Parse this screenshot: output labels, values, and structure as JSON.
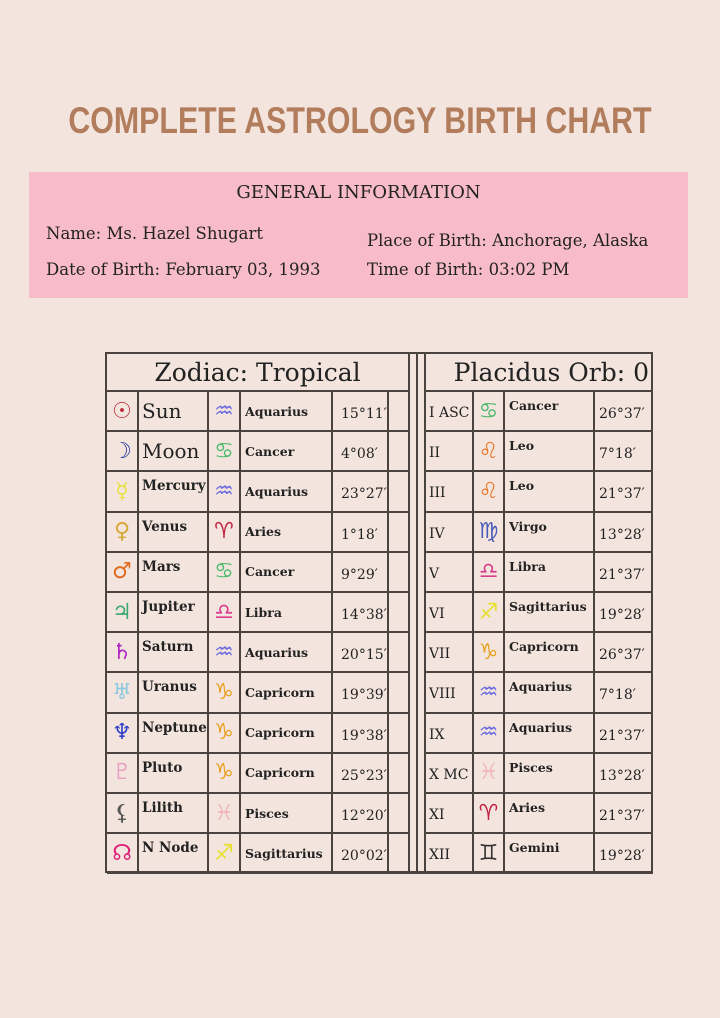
{
  "title": "COMPLETE ASTROLOGY BIRTH CHART",
  "general": {
    "heading": "GENERAL INFORMATION",
    "name": "Name: Ms. Hazel Shugart",
    "date_of_birth": "Date of Birth: February 03, 1993",
    "place_of_birth": "Place of Birth: Anchorage, Alaska",
    "time_of_birth": "Time of Birth: 03:02 PM"
  },
  "zodiac_header": "Zodiac: Tropical",
  "houses_header": "Placidus Orb: 0",
  "planets": [
    {
      "icon": "sun-icon",
      "glyph": "☉",
      "color": "#c0303a",
      "name": "Sun",
      "sign_icon": "aquarius-icon",
      "sign_glyph": "♒",
      "sign_color": "#6a6ae0",
      "sign": "Aquarius",
      "degree": "15°11′"
    },
    {
      "icon": "moon-icon",
      "glyph": "☽",
      "color": "#2a3aa0",
      "name": "Moon",
      "sign_icon": "cancer-icon",
      "sign_glyph": "♋",
      "sign_color": "#4cb86a",
      "sign": "Cancer",
      "degree": "4°08′"
    },
    {
      "icon": "mercury-icon",
      "glyph": "☿",
      "color": "#e8e040",
      "name": "Mercury",
      "sign_icon": "aquarius-icon",
      "sign_glyph": "♒",
      "sign_color": "#6a6ae0",
      "sign": "Aquarius",
      "degree": "23°27′"
    },
    {
      "icon": "venus-icon",
      "glyph": "♀",
      "color": "#d8a838",
      "name": "Venus",
      "sign_icon": "aries-icon",
      "sign_glyph": "♈",
      "sign_color": "#c02040",
      "sign": "Aries",
      "degree": "1°18′"
    },
    {
      "icon": "mars-icon",
      "glyph": "♂",
      "color": "#e06a20",
      "name": "Mars",
      "sign_icon": "cancer-icon",
      "sign_glyph": "♋",
      "sign_color": "#4cb86a",
      "sign": "Cancer",
      "degree": "9°29′"
    },
    {
      "icon": "jupiter-icon",
      "glyph": "♃",
      "color": "#3aa870",
      "name": "Jupiter",
      "sign_icon": "libra-icon",
      "sign_glyph": "♎",
      "sign_color": "#d83c8c",
      "sign": "Libra",
      "degree": "14°38′"
    },
    {
      "icon": "saturn-icon",
      "glyph": "♄",
      "color": "#b020c0",
      "name": "Saturn",
      "sign_icon": "aquarius-icon",
      "sign_glyph": "♒",
      "sign_color": "#6a6ae0",
      "sign": "Aquarius",
      "degree": "20°15′"
    },
    {
      "icon": "uranus-icon",
      "glyph": "♅",
      "color": "#8cc8e0",
      "name": "Uranus",
      "sign_icon": "capricorn-icon",
      "sign_glyph": "♑",
      "sign_color": "#e8a020",
      "sign": "Capricorn",
      "degree": "19°39′"
    },
    {
      "icon": "neptune-icon",
      "glyph": "♆",
      "color": "#3040c8",
      "name": "Neptune",
      "sign_icon": "capricorn-icon",
      "sign_glyph": "♑",
      "sign_color": "#e8a020",
      "sign": "Capricorn",
      "degree": "19°38′"
    },
    {
      "icon": "pluto-icon",
      "glyph": "♇",
      "color": "#e8a0c0",
      "name": "Pluto",
      "sign_icon": "capricorn-icon",
      "sign_glyph": "♑",
      "sign_color": "#e8a020",
      "sign": "Capricorn",
      "degree": "25°23′"
    },
    {
      "icon": "lilith-icon",
      "glyph": "⚸",
      "color": "#555555",
      "name": "Lilith",
      "sign_icon": "pisces-icon",
      "sign_glyph": "♓",
      "sign_color": "#f0b8b8",
      "sign": "Pisces",
      "degree": "12°20′"
    },
    {
      "icon": "north-node-icon",
      "glyph": "☊",
      "color": "#e0207a",
      "name": "N Node",
      "sign_icon": "sagittarius-icon",
      "sign_glyph": "♐",
      "sign_color": "#e8e030",
      "sign": "Sagittarius",
      "degree": "20°02′"
    }
  ],
  "houses": [
    {
      "house": "I ASC",
      "sign_icon": "cancer-icon",
      "sign_glyph": "♋",
      "sign_color": "#4cb86a",
      "sign": "Cancer",
      "degree": "26°37′"
    },
    {
      "house": "II",
      "sign_icon": "leo-icon",
      "sign_glyph": "♌",
      "sign_color": "#e87a30",
      "sign": "Leo",
      "degree": "7°18′"
    },
    {
      "house": "III",
      "sign_icon": "leo-icon",
      "sign_glyph": "♌",
      "sign_color": "#e87a30",
      "sign": "Leo",
      "degree": "21°37′"
    },
    {
      "house": "IV",
      "sign_icon": "virgo-icon",
      "sign_glyph": "♍",
      "sign_color": "#4a5ab8",
      "sign": "Virgo",
      "degree": "13°28′"
    },
    {
      "house": "V",
      "sign_icon": "libra-icon",
      "sign_glyph": "♎",
      "sign_color": "#d83c8c",
      "sign": "Libra",
      "degree": "21°37′"
    },
    {
      "house": "VI",
      "sign_icon": "sagittarius-icon",
      "sign_glyph": "♐",
      "sign_color": "#e8e030",
      "sign": "Sagittarius",
      "degree": "19°28′"
    },
    {
      "house": "VII",
      "sign_icon": "capricorn-icon",
      "sign_glyph": "♑",
      "sign_color": "#e8a020",
      "sign": "Capricorn",
      "degree": "26°37′"
    },
    {
      "house": "VIII",
      "sign_icon": "aquarius-icon",
      "sign_glyph": "♒",
      "sign_color": "#6a6ae0",
      "sign": "Aquarius",
      "degree": "7°18′"
    },
    {
      "house": "IX",
      "sign_icon": "aquarius-icon",
      "sign_glyph": "♒",
      "sign_color": "#6a6ae0",
      "sign": "Aquarius",
      "degree": "21°37′"
    },
    {
      "house": "X MC",
      "sign_icon": "pisces-icon",
      "sign_glyph": "♓",
      "sign_color": "#f0b8b8",
      "sign": "Pisces",
      "degree": "13°28′"
    },
    {
      "house": "XI",
      "sign_icon": "aries-icon",
      "sign_glyph": "♈",
      "sign_color": "#c02040",
      "sign": "Aries",
      "degree": "21°37′"
    },
    {
      "house": "XII",
      "sign_icon": "gemini-icon",
      "sign_glyph": "♊",
      "sign_color": "#333333",
      "sign": "Gemini",
      "degree": "19°28′"
    }
  ]
}
